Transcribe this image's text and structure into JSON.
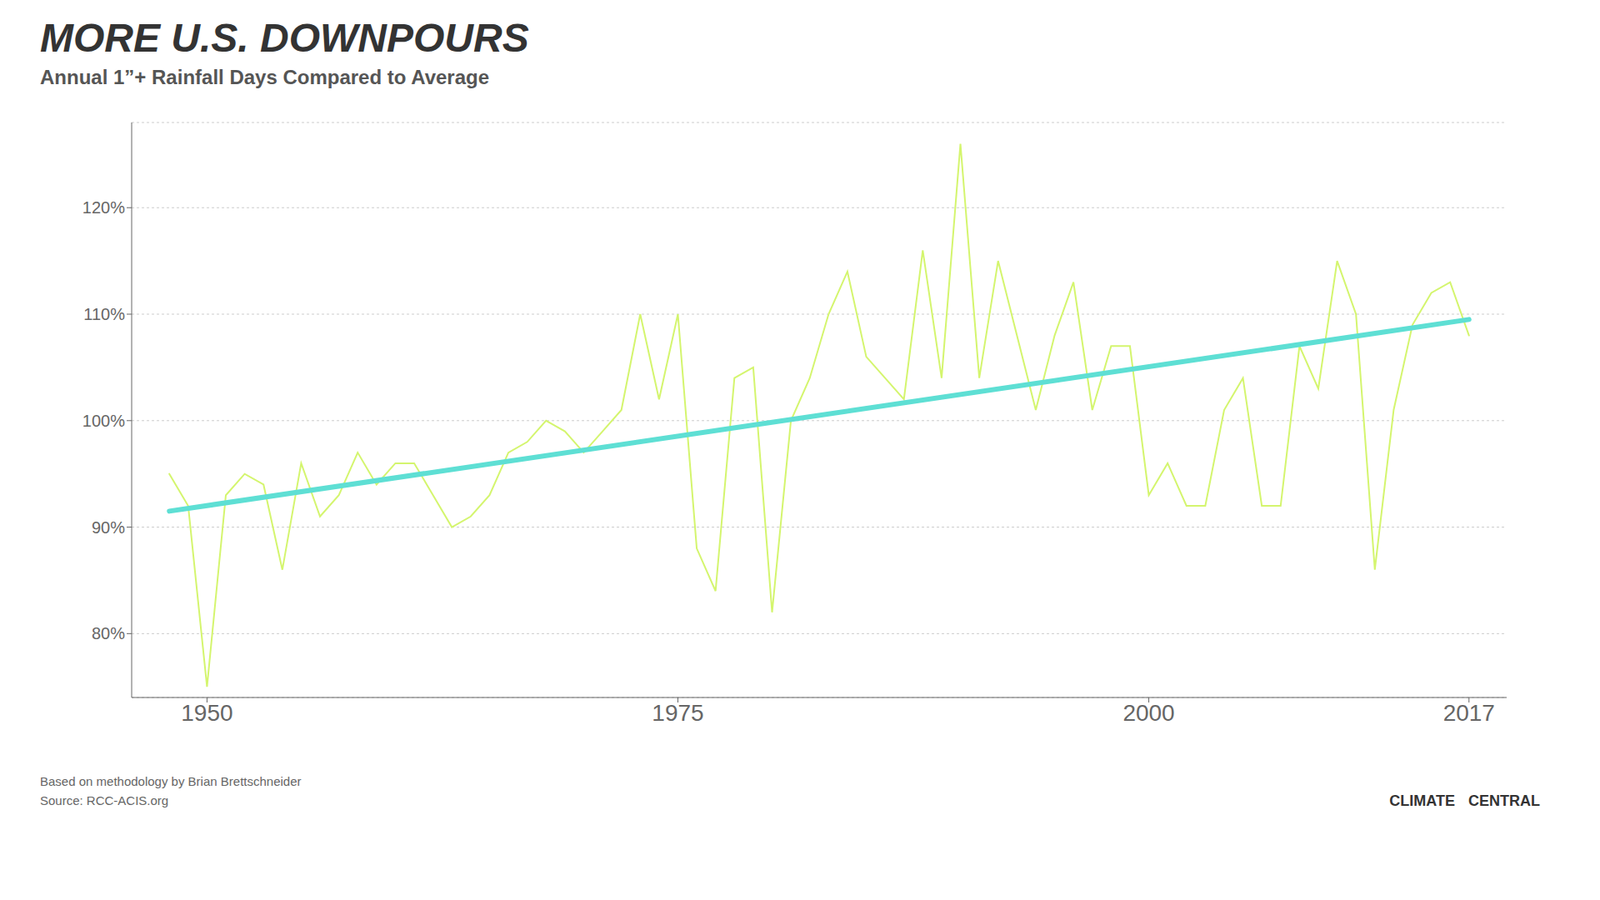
{
  "chart_data": {
    "type": "line",
    "title": "MORE U.S. DOWNPOURS",
    "subtitle": "Annual 1”+ Rainfall Days Compared to Average",
    "annotations": [
      "Based on methodology by Brian Brettschneider",
      "Source: RCC-ACIS.org",
      "CLIMATE",
      "CENTRAL"
    ],
    "x": [
      1948,
      1949,
      1950,
      1951,
      1952,
      1953,
      1954,
      1955,
      1956,
      1957,
      1958,
      1959,
      1960,
      1961,
      1962,
      1963,
      1964,
      1965,
      1966,
      1967,
      1968,
      1969,
      1970,
      1971,
      1972,
      1973,
      1974,
      1975,
      1976,
      1977,
      1978,
      1979,
      1980,
      1981,
      1982,
      1983,
      1984,
      1985,
      1986,
      1987,
      1988,
      1989,
      1990,
      1991,
      1992,
      1993,
      1994,
      1995,
      1996,
      1997,
      1998,
      1999,
      2000,
      2001,
      2002,
      2003,
      2004,
      2005,
      2006,
      2007,
      2008,
      2009,
      2010,
      2011,
      2012,
      2013,
      2014,
      2015,
      2016,
      2017
    ],
    "series": [
      {
        "color": "#d4f56e",
        "values": [
          95,
          92,
          75,
          93,
          95,
          94,
          86,
          96,
          91,
          93,
          97,
          94,
          96,
          96,
          93,
          90,
          91,
          93,
          97,
          98,
          100,
          99,
          97,
          99,
          101,
          110,
          102,
          110,
          88,
          84,
          104,
          105,
          82,
          100,
          104,
          110,
          114,
          106,
          104,
          102,
          116,
          104,
          126,
          104,
          115,
          108,
          101,
          108,
          113,
          101,
          107,
          107,
          93,
          96,
          92,
          92,
          101,
          104,
          92,
          92,
          107,
          103,
          115,
          110,
          86,
          101,
          109,
          112,
          113,
          108
        ]
      },
      {
        "color": "#5edfd4",
        "x": [
          1948,
          2017
        ],
        "values": [
          91.5,
          109.5
        ]
      }
    ],
    "xlim": [
      1946,
      2019
    ],
    "xticks": [
      1950,
      1975,
      2000,
      2017
    ],
    "ylim": [
      74,
      128
    ],
    "yticks": [
      {
        "value": 80,
        "label": "80%"
      },
      {
        "value": 90,
        "label": "90%"
      },
      {
        "value": 100,
        "label": "100%"
      },
      {
        "value": 110,
        "label": "110%"
      },
      {
        "value": 120,
        "label": "120%"
      }
    ],
    "grid": true
  }
}
